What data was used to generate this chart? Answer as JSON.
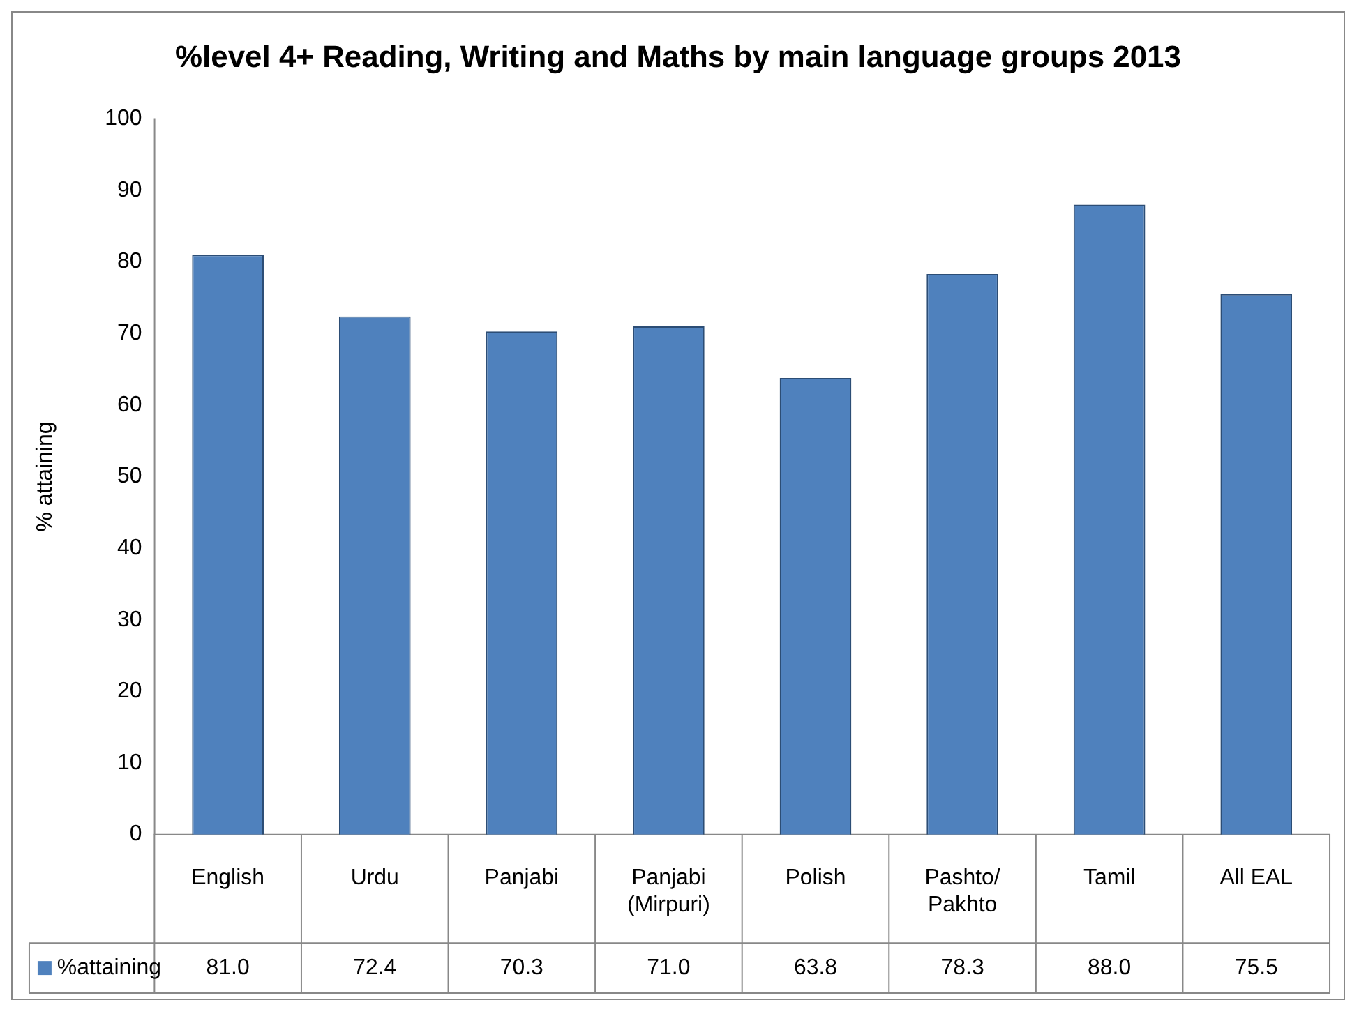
{
  "chart_data": {
    "type": "bar",
    "title": "%level 4+ Reading, Writing and Maths by main language groups 2013",
    "ylabel": "% attaining",
    "categories": [
      "English",
      "Urdu",
      "Panjabi",
      "Panjabi (Mirpuri)",
      "Polish",
      "Pashto/ Pakhto",
      "Tamil",
      "All EAL"
    ],
    "series": [
      {
        "name": "%attaining",
        "color": "#4f81bd",
        "values": [
          81.0,
          72.4,
          70.3,
          71.0,
          63.8,
          78.3,
          88.0,
          75.5
        ],
        "value_labels": [
          "81.0",
          "72.4",
          "70.3",
          "71.0",
          "63.8",
          "78.3",
          "88.0",
          "75.5"
        ]
      }
    ],
    "ylim": [
      0,
      100
    ],
    "yticks": [
      0,
      10,
      20,
      30,
      40,
      50,
      60,
      70,
      80,
      90,
      100
    ],
    "legend": "bottom"
  }
}
